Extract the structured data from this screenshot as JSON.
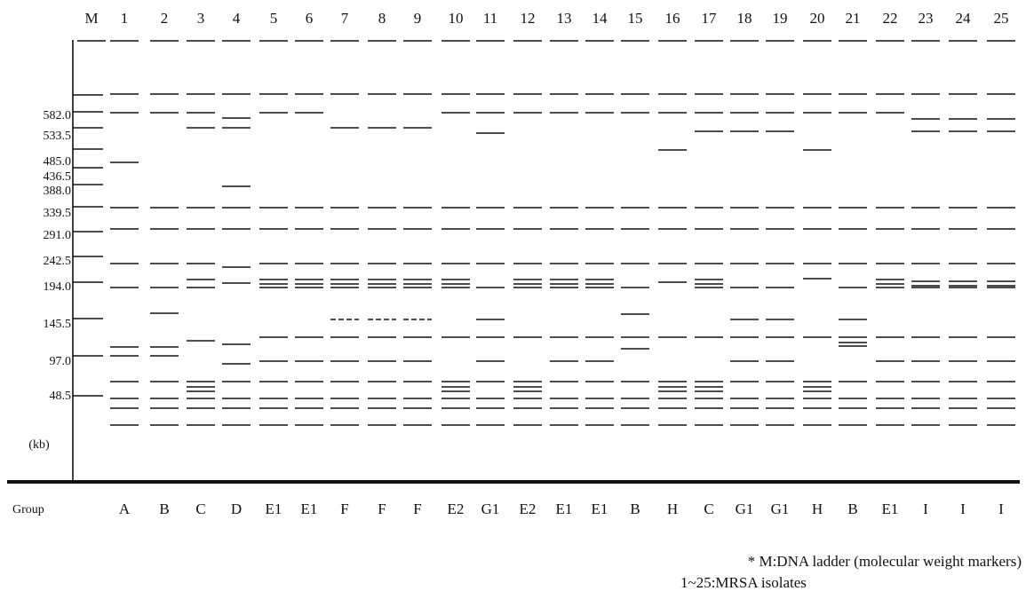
{
  "lanes": [
    "M",
    "1",
    "2",
    "3",
    "4",
    "5",
    "6",
    "7",
    "8",
    "9",
    "10",
    "11",
    "12",
    "13",
    "14",
    "15",
    "16",
    "17",
    "18",
    "19",
    "20",
    "21",
    "22",
    "23",
    "24",
    "25"
  ],
  "markers": [
    "582.0",
    "533.5",
    "485.0",
    "436.5",
    "388.0",
    "339.5",
    "291.0",
    "242.5",
    "194.0",
    "145.5",
    "97.0",
    "48.5"
  ],
  "unit": "(kb)",
  "group_label": "Group",
  "groups": [
    "A",
    "B",
    "C",
    "D",
    "E1",
    "E1",
    "F",
    "F",
    "F",
    "E2",
    "G1",
    "E2",
    "E1",
    "E1",
    "B",
    "H",
    "C",
    "G1",
    "G1",
    "H",
    "B",
    "E1",
    "I",
    "I",
    "I"
  ],
  "footnotes": [
    "* M:DNA ladder (molecular weight markers)",
    "1~25:MRSA isolates"
  ]
}
